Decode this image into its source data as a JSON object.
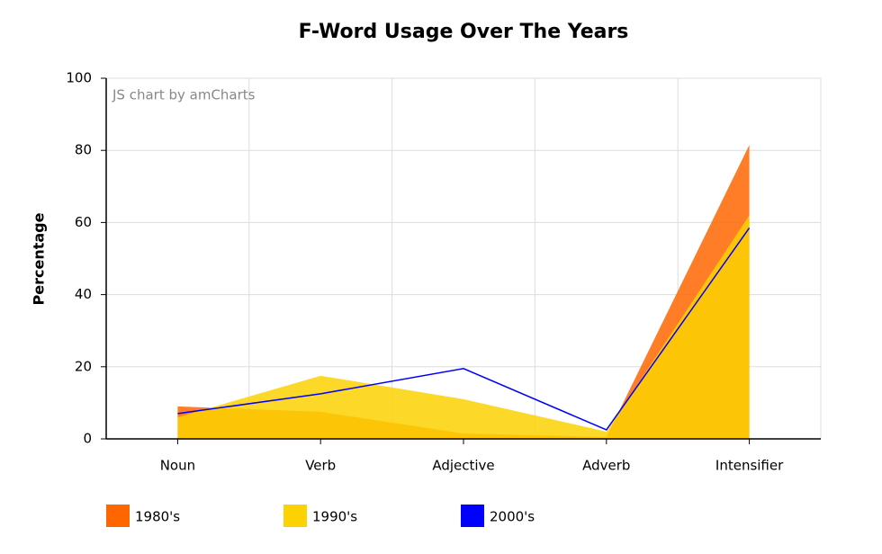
{
  "chart_data": {
    "type": "area",
    "title": "F-Word Usage Over The Years",
    "y_label": "Percentage",
    "credit": "JS chart by amCharts",
    "categories": [
      "Noun",
      "Verb",
      "Adjective",
      "Adverb",
      "Intensifier"
    ],
    "series": [
      {
        "name": "1980's",
        "color": "#FF6600",
        "kind": "area",
        "values": [
          9,
          7.5,
          1.5,
          0.5,
          81.5
        ]
      },
      {
        "name": "1990's",
        "color": "#FCD202",
        "kind": "area",
        "values": [
          6,
          17.5,
          11,
          2,
          62
        ]
      },
      {
        "name": "2000's",
        "color": "#0000FF",
        "kind": "line",
        "values": [
          7,
          12.5,
          19.5,
          2.5,
          58.5
        ]
      }
    ],
    "ylim": [
      0,
      100
    ],
    "yticks": [
      0,
      20,
      40,
      60,
      80,
      100
    ],
    "grid": true,
    "legend_position": "bottom"
  }
}
